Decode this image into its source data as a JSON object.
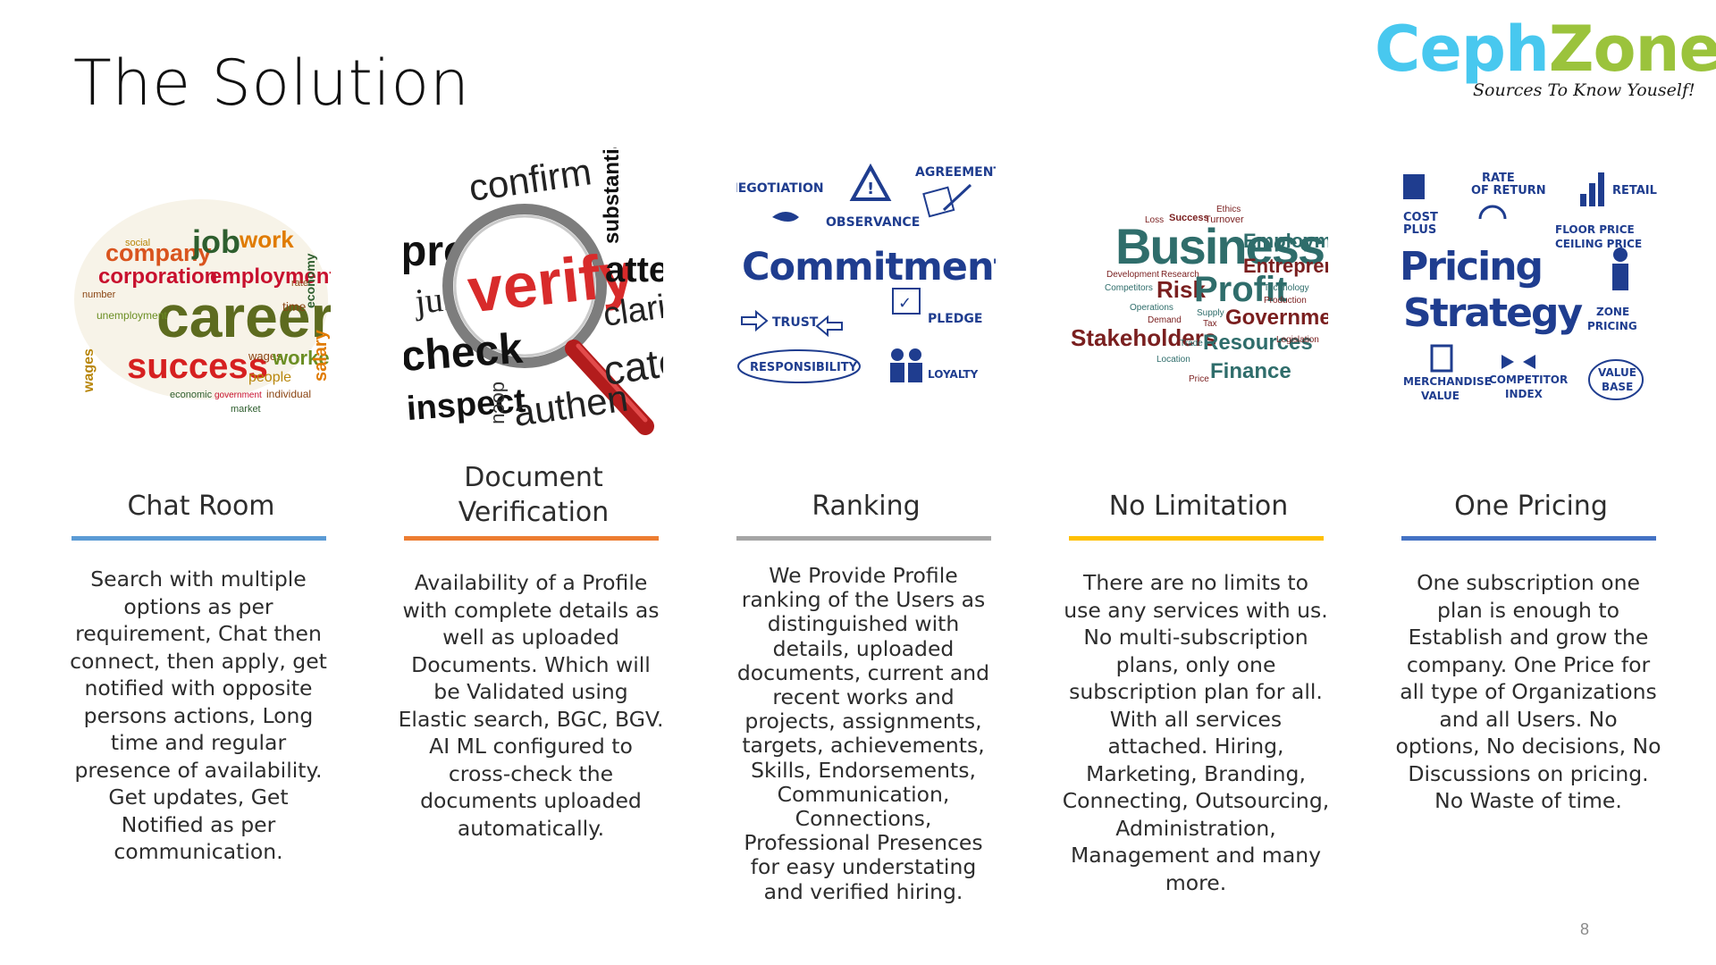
{
  "slide": {
    "title": "The Solution",
    "page_number": "8"
  },
  "logo": {
    "word_part1": "Ceph",
    "word_part2": "Zone",
    "tagline": "Sources To Know Youself!"
  },
  "columns": [
    {
      "heading": "Chat Room",
      "rule_color": "#5b9bd5",
      "body": "Search with multiple options as per requirement, Chat then connect, then apply, get notified with opposite persons actions, Long time and regular presence of availability. Get updates, Get Notified as per communication.",
      "image_words": [
        "company",
        "job",
        "work",
        "corporation",
        "employment",
        "career",
        "success",
        "workers",
        "salary",
        "economy",
        "wages",
        "people",
        "time",
        "unemployment",
        "economic",
        "government",
        "individual",
        "market",
        "social",
        "rate",
        "number"
      ]
    },
    {
      "heading": "Document Verification",
      "rule_color": "#ed7d31",
      "body": "Availability of a Profile with complete details as well as uploaded Documents. Which will be Validated using Elastic search, BGC, BGV. AI ML configured to cross-check the documents uploaded automatically.",
      "image_words": [
        "confirm",
        "substantiat",
        "prove",
        "justify",
        "verify",
        "attest",
        "check",
        "clarify",
        "inspect",
        "docu",
        "authen",
        "cate"
      ]
    },
    {
      "heading": "Ranking",
      "rule_color": "#a5a5a5",
      "body": "We Provide Profile ranking of the Users as distinguished with details, uploaded documents, current and recent works and projects, assignments, targets, achievements, Skills, Endorsements, Communication, Connections, Professional Presences for easy understating and verified hiring.",
      "image_words": [
        "NEGOTIATION",
        "AGREEMENT",
        "OBSERVANCE",
        "Commitment",
        "TRUST",
        "PLEDGE",
        "RESPONSIBILITY",
        "LOYALTY"
      ]
    },
    {
      "heading": "No Limitation",
      "rule_color": "#ffc000",
      "body": "There are no limits to use any services with us. No multi-subscription plans, only one subscription plan for all. With all services attached. Hiring, Marketing, Branding, Connecting, Outsourcing, Administration, Management and many more.",
      "image_words": [
        "Ethics",
        "Loss",
        "Success",
        "Turnover",
        "Business",
        "Employment",
        "Entrepreneur",
        "Development",
        "Research",
        "Competitors",
        "Risk",
        "Profit",
        "Technology",
        "Production",
        "Operations",
        "Demand",
        "Supply",
        "Tax",
        "Government",
        "Stakeholders",
        "Trade",
        "Resources",
        "Legislation",
        "Location",
        "Price",
        "Finance"
      ]
    },
    {
      "heading": "One Pricing",
      "rule_color": "#4472c4",
      "body": "One subscription one plan is enough to Establish and grow the company. One Price for all type of Organizations and all Users. No options, No decisions, No Discussions on pricing. No Waste of time.",
      "image_words": [
        "RATE",
        "OF RETURN",
        "RETAIL",
        "COST",
        "PLUS",
        "FLOOR PRICE",
        "CEILING PRICE",
        "Pricing",
        "Strategy",
        "ZONE",
        "PRICING",
        "MERCHANDISE",
        "VALUE",
        "COMPETITOR",
        "INDEX",
        "VALUE",
        "BASE"
      ]
    }
  ],
  "colors": {
    "career_palette": [
      "#d9541e",
      "#6b8e23",
      "#c8102e",
      "#8b4513",
      "#b8860b",
      "#2e5e2e",
      "#e07b00"
    ],
    "verify_red": "#d82b2b",
    "commitment_blue": "#1f3d8f",
    "business_green": "#2f6d6b",
    "business_maroon": "#7a1f1f",
    "pricing_blue": "#1f3d8f"
  }
}
